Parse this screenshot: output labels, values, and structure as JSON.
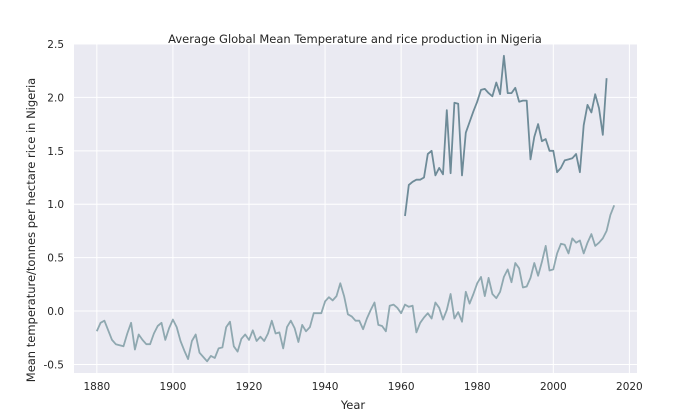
{
  "chart_data": {
    "type": "line",
    "title": "Average Global Mean Temperature and rice production in Nigeria",
    "xlabel": "Year",
    "ylabel": "Mean temperature/tonnes per hectare rice in Nigeria",
    "xlim": [
      1874,
      2022
    ],
    "ylim": [
      -0.58,
      2.5
    ],
    "xticks": [
      1880,
      1900,
      1920,
      1940,
      1960,
      1980,
      2000,
      2020
    ],
    "yticks": [
      -0.5,
      0.0,
      0.5,
      1.0,
      1.5,
      2.0,
      2.5
    ],
    "grid": true,
    "background": "#eaeaf2",
    "series": [
      {
        "color": "#8fa8b0",
        "x": [
          1880,
          1881,
          1882,
          1883,
          1884,
          1885,
          1886,
          1887,
          1888,
          1889,
          1890,
          1891,
          1892,
          1893,
          1894,
          1895,
          1896,
          1897,
          1898,
          1899,
          1900,
          1901,
          1902,
          1903,
          1904,
          1905,
          1906,
          1907,
          1908,
          1909,
          1910,
          1911,
          1912,
          1913,
          1914,
          1915,
          1916,
          1917,
          1918,
          1919,
          1920,
          1921,
          1922,
          1923,
          1924,
          1925,
          1926,
          1927,
          1928,
          1929,
          1930,
          1931,
          1932,
          1933,
          1934,
          1935,
          1936,
          1937,
          1938,
          1939,
          1940,
          1941,
          1942,
          1943,
          1944,
          1945,
          1946,
          1947,
          1948,
          1949,
          1950,
          1951,
          1952,
          1953,
          1954,
          1955,
          1956,
          1957,
          1958,
          1959,
          1960,
          1961,
          1962,
          1963,
          1964,
          1965,
          1966,
          1967,
          1968,
          1969,
          1970,
          1971,
          1972,
          1973,
          1974,
          1975,
          1976,
          1977,
          1978,
          1979,
          1980,
          1981,
          1982,
          1983,
          1984,
          1985,
          1986,
          1987,
          1988,
          1989,
          1990,
          1991,
          1992,
          1993,
          1994,
          1995,
          1996,
          1997,
          1998,
          1999,
          2000,
          2001,
          2002,
          2003,
          2004,
          2005,
          2006,
          2007,
          2008,
          2009,
          2010,
          2011,
          2012,
          2013,
          2014,
          2015,
          2016
        ],
        "y": [
          -0.19,
          -0.11,
          -0.09,
          -0.18,
          -0.27,
          -0.31,
          -0.32,
          -0.33,
          -0.21,
          -0.11,
          -0.36,
          -0.22,
          -0.27,
          -0.31,
          -0.31,
          -0.21,
          -0.14,
          -0.11,
          -0.27,
          -0.16,
          -0.08,
          -0.15,
          -0.28,
          -0.37,
          -0.45,
          -0.28,
          -0.22,
          -0.39,
          -0.43,
          -0.47,
          -0.42,
          -0.44,
          -0.35,
          -0.34,
          -0.15,
          -0.1,
          -0.33,
          -0.38,
          -0.26,
          -0.22,
          -0.27,
          -0.18,
          -0.28,
          -0.24,
          -0.28,
          -0.21,
          -0.09,
          -0.21,
          -0.2,
          -0.35,
          -0.15,
          -0.09,
          -0.16,
          -0.29,
          -0.13,
          -0.19,
          -0.15,
          -0.02,
          -0.02,
          -0.02,
          0.09,
          0.13,
          0.1,
          0.14,
          0.26,
          0.14,
          -0.03,
          -0.05,
          -0.09,
          -0.09,
          -0.17,
          -0.07,
          0.01,
          0.08,
          -0.13,
          -0.14,
          -0.19,
          0.05,
          0.06,
          0.03,
          -0.02,
          0.06,
          0.04,
          0.05,
          -0.2,
          -0.11,
          -0.06,
          -0.02,
          -0.07,
          0.08,
          0.03,
          -0.08,
          0.01,
          0.16,
          -0.07,
          -0.01,
          -0.1,
          0.18,
          0.07,
          0.16,
          0.26,
          0.32,
          0.14,
          0.31,
          0.16,
          0.12,
          0.18,
          0.32,
          0.39,
          0.27,
          0.45,
          0.4,
          0.22,
          0.23,
          0.31,
          0.45,
          0.33,
          0.46,
          0.61,
          0.38,
          0.39,
          0.54,
          0.63,
          0.62,
          0.54,
          0.68,
          0.64,
          0.66,
          0.54,
          0.64,
          0.72,
          0.61,
          0.64,
          0.68,
          0.75,
          0.9,
          0.99
        ]
      },
      {
        "color": "#6e8b98",
        "x": [
          1961,
          1962,
          1963,
          1964,
          1965,
          1966,
          1967,
          1968,
          1969,
          1970,
          1971,
          1972,
          1973,
          1974,
          1975,
          1976,
          1977,
          1978,
          1979,
          1980,
          1981,
          1982,
          1983,
          1984,
          1985,
          1986,
          1987,
          1988,
          1989,
          1990,
          1991,
          1992,
          1993,
          1994,
          1995,
          1996,
          1997,
          1998,
          1999,
          2000,
          2001,
          2002,
          2003,
          2004,
          2005,
          2006,
          2007,
          2008,
          2009,
          2010,
          2011,
          2012,
          2013,
          2014
        ],
        "y": [
          0.89,
          1.18,
          1.21,
          1.23,
          1.23,
          1.25,
          1.47,
          1.5,
          1.27,
          1.34,
          1.28,
          1.88,
          1.29,
          1.95,
          1.94,
          1.27,
          1.67,
          1.77,
          1.87,
          1.96,
          2.07,
          2.08,
          2.04,
          2.01,
          2.14,
          2.03,
          2.39,
          2.04,
          2.04,
          2.09,
          1.96,
          1.97,
          1.97,
          1.42,
          1.63,
          1.75,
          1.59,
          1.61,
          1.5,
          1.5,
          1.3,
          1.34,
          1.41,
          1.42,
          1.43,
          1.47,
          1.3,
          1.74,
          1.93,
          1.86,
          2.03,
          1.9,
          1.65,
          2.18
        ]
      }
    ]
  }
}
